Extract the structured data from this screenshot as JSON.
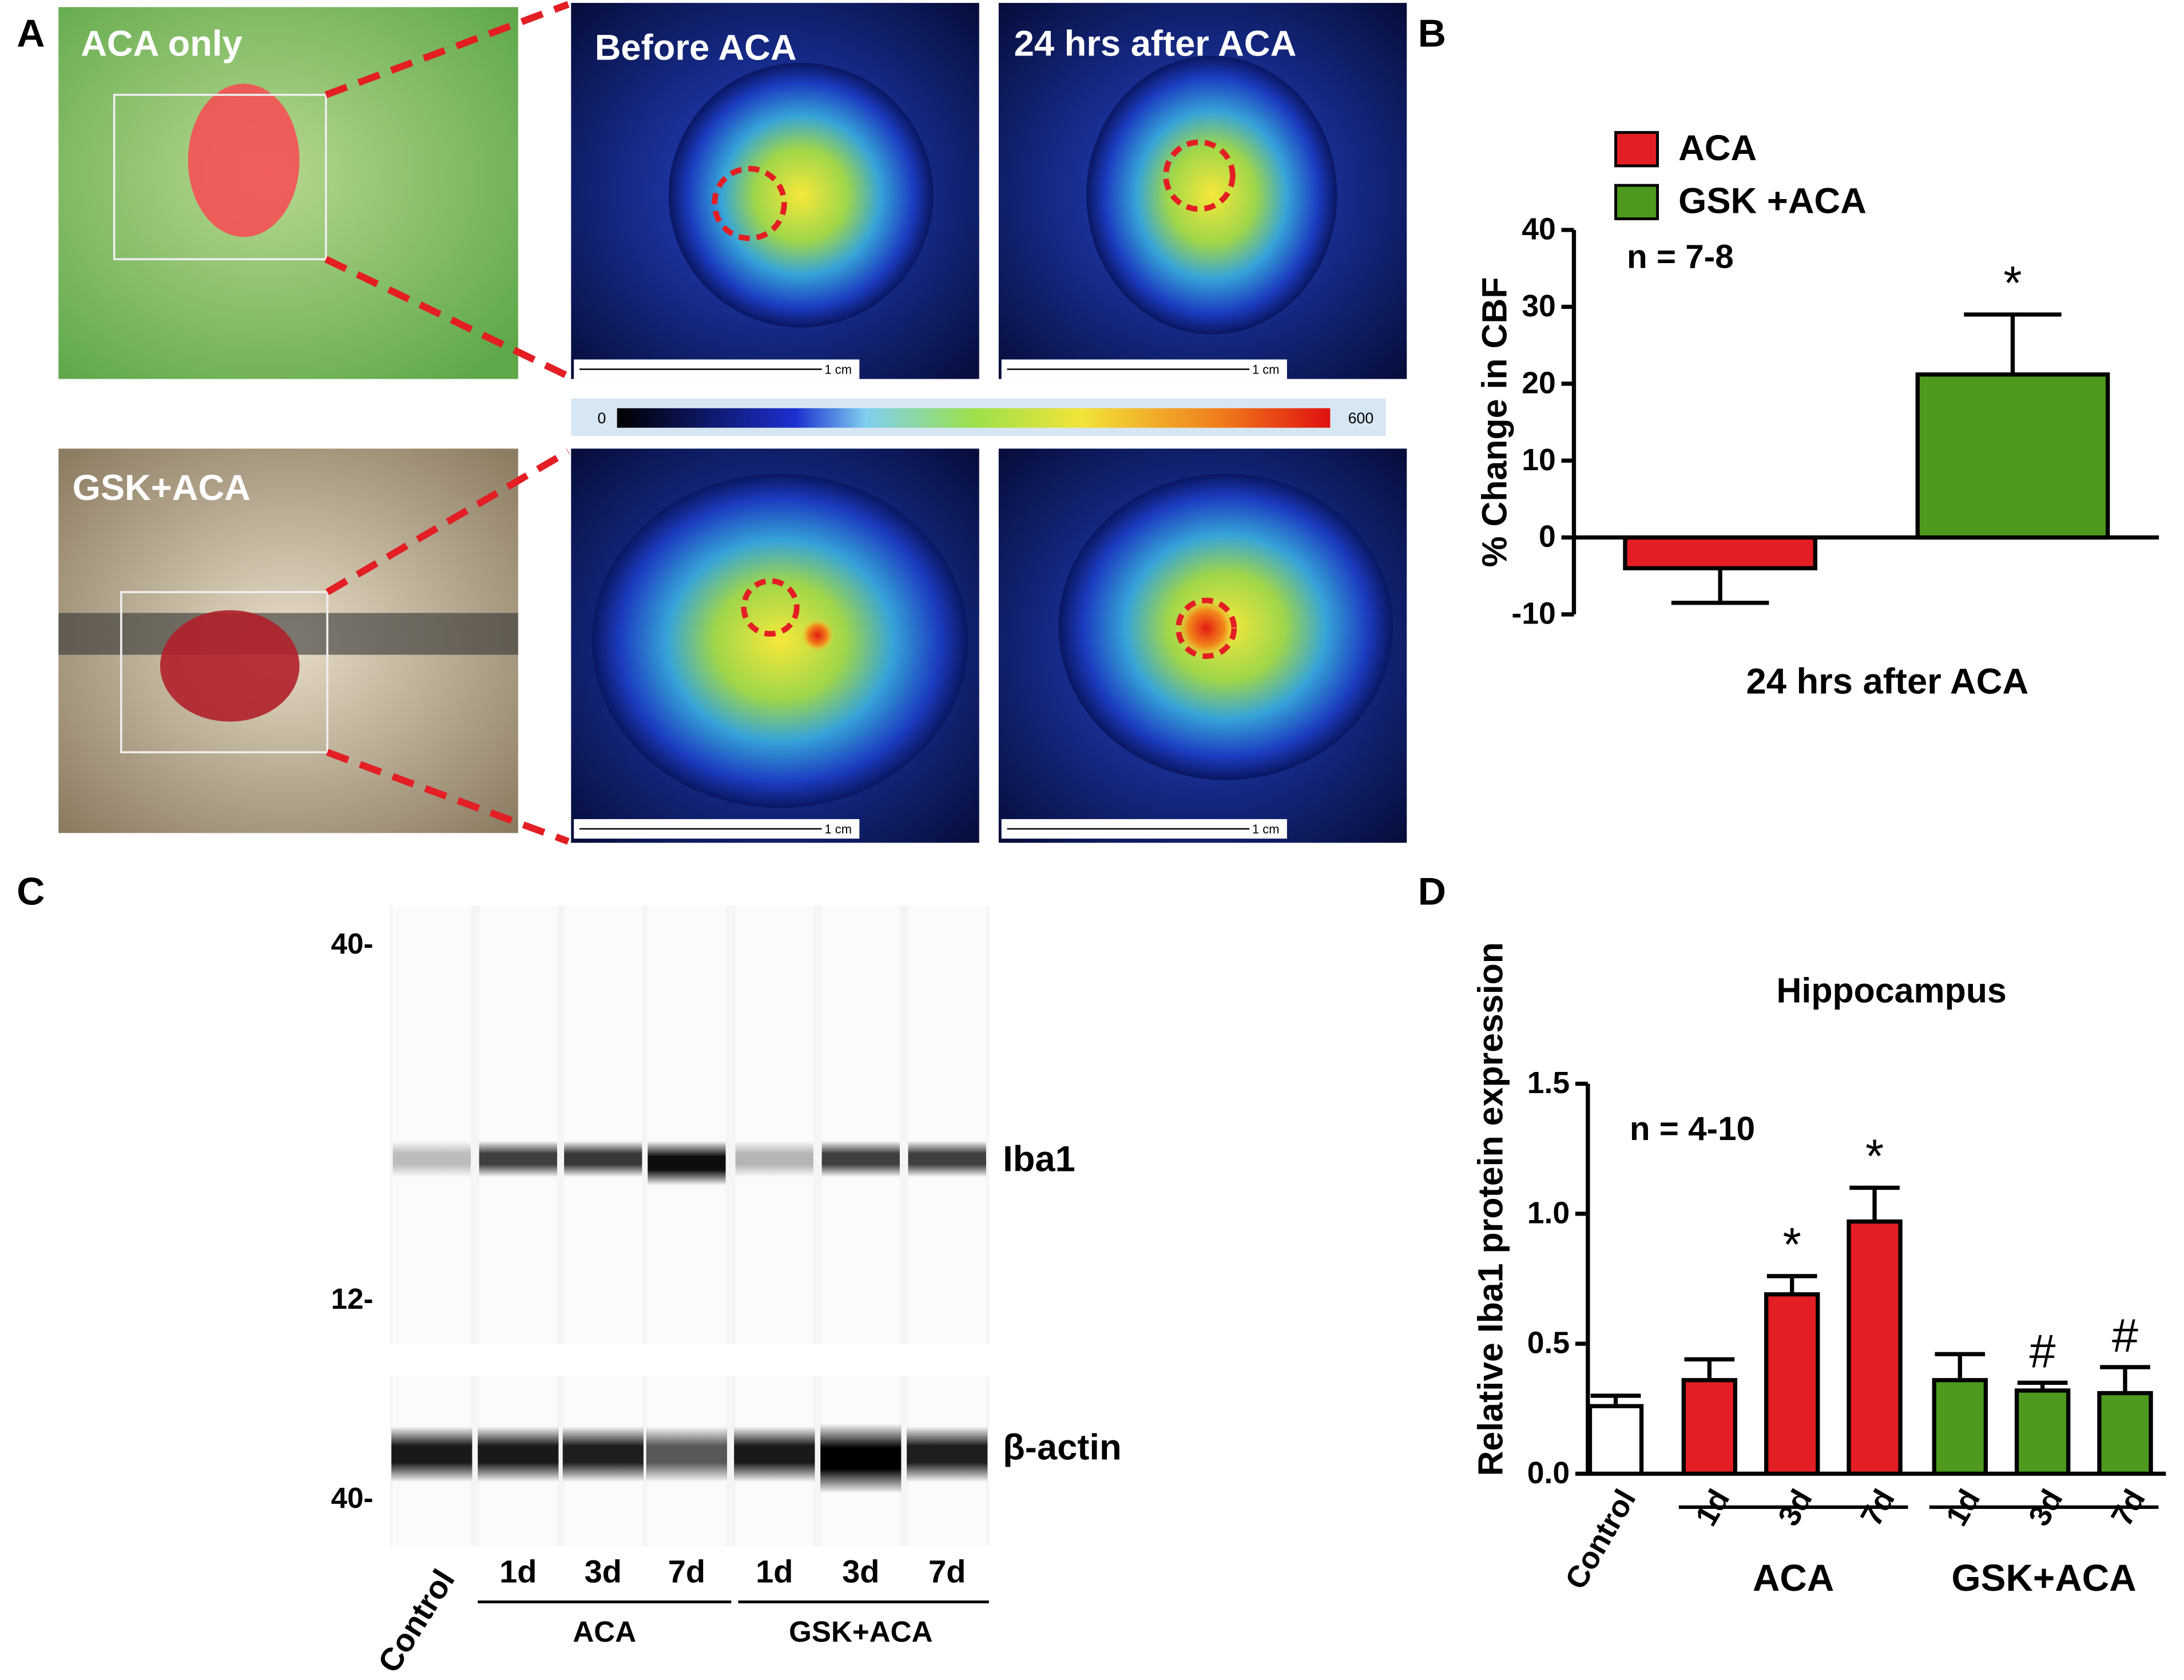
{
  "panel_labels": [
    "A",
    "B",
    "C",
    "D"
  ],
  "panel_a": {
    "photo_labels": [
      "ACA only",
      "GSK+ACA"
    ],
    "image_titles": [
      "Before ACA",
      "24 hrs after ACA"
    ],
    "scale_bar": "1 cm",
    "colorbar": {
      "min": 0,
      "max": 600
    }
  },
  "panel_c": {
    "mw_labels": [
      "40-",
      "12-",
      "40-"
    ],
    "bands": [
      "Iba1",
      "β-actin"
    ],
    "lanes": [
      "Control",
      "1d",
      "3d",
      "7d",
      "1d",
      "3d",
      "7d"
    ],
    "groups": [
      "ACA",
      "GSK+ACA"
    ]
  },
  "chart_data": [
    {
      "type": "bar",
      "ylabel": "% Change in CBF",
      "xlabel": "24 hrs after ACA",
      "annotation": "n = 7-8",
      "series": [
        {
          "name": "ACA",
          "color": "#e31e24",
          "values": [
            -4.0
          ],
          "errors": [
            4.5
          ]
        },
        {
          "name": "GSK +ACA",
          "color": "#4d9a1e",
          "values": [
            21.2
          ],
          "errors": [
            7.8
          ],
          "marker": "*"
        }
      ],
      "ylim": [
        -10,
        40
      ],
      "yticks": [
        -10,
        0,
        10,
        20,
        30,
        40
      ]
    },
    {
      "type": "bar",
      "title": "Hippocampus",
      "ylabel": "Relative Iba1 protein expression",
      "annotation": "n = 4-10",
      "categories": [
        "Control",
        "1d",
        "3d",
        "7d",
        "1d",
        "3d",
        "7d"
      ],
      "groups": [
        "ACA",
        "GSK+ACA"
      ],
      "values": [
        0.26,
        0.36,
        0.69,
        0.97,
        0.36,
        0.32,
        0.31
      ],
      "errors": [
        0.04,
        0.08,
        0.07,
        0.13,
        0.1,
        0.03,
        0.1
      ],
      "colors": [
        "#ffffff",
        "#e31e24",
        "#e31e24",
        "#e31e24",
        "#4d9a1e",
        "#4d9a1e",
        "#4d9a1e"
      ],
      "markers": [
        null,
        null,
        "*",
        "*",
        null,
        "#",
        "#"
      ],
      "ylim": [
        0,
        1.5
      ],
      "yticks": [
        {
          "value": 0,
          "label": "0.0"
        },
        0.5,
        {
          "value": 1,
          "label": "1.0"
        },
        1.5
      ]
    }
  ]
}
